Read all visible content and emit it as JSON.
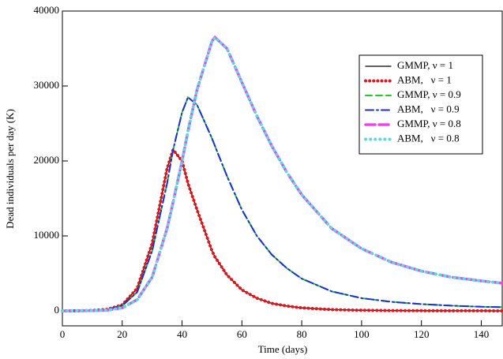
{
  "chart_data": {
    "type": "line",
    "x_label": "Time (days)",
    "y_label": "Dead individuals per day (K)",
    "x": [
      0,
      5,
      10,
      15,
      20,
      25,
      30,
      35,
      37,
      40,
      42,
      45,
      50,
      51,
      55,
      60,
      65,
      70,
      75,
      80,
      90,
      100,
      110,
      120,
      130,
      140,
      147
    ],
    "xlim": [
      0,
      147
    ],
    "xticks": [
      0,
      20,
      40,
      60,
      80,
      100,
      120,
      140
    ],
    "ylim": [
      -2000,
      40000
    ],
    "yticks": [
      0,
      10000,
      20000,
      30000,
      40000
    ],
    "legend": "upper right",
    "series": [
      {
        "name": "GMMP, ν = 1",
        "color": "#000000",
        "dash": "none",
        "width": 1.3,
        "values": [
          0,
          10,
          50,
          200,
          800,
          3000,
          9000,
          19000,
          21500,
          20000,
          17000,
          13500,
          8000,
          7200,
          4800,
          2800,
          1700,
          1000,
          650,
          400,
          170,
          80,
          40,
          20,
          10,
          6,
          5
        ]
      },
      {
        "name": "ABM,   ν = 1",
        "color": "#e8141c",
        "dash": "0.1,5",
        "width": 4,
        "values": [
          0,
          10,
          50,
          200,
          800,
          3000,
          9000,
          19000,
          21500,
          20000,
          17000,
          13500,
          8000,
          7200,
          4800,
          2800,
          1700,
          1000,
          650,
          400,
          170,
          80,
          40,
          20,
          10,
          6,
          5
        ]
      },
      {
        "name": "GMMP, ν = 0.9",
        "color": "#22cc22",
        "dash": "8,5",
        "width": 2,
        "values": [
          0,
          15,
          40,
          200,
          700,
          2500,
          8000,
          17000,
          21500,
          26500,
          28500,
          27500,
          23000,
          22000,
          18000,
          13500,
          10000,
          7500,
          5700,
          4300,
          2600,
          1700,
          1200,
          900,
          700,
          550,
          500
        ]
      },
      {
        "name": "ABM,   ν = 0.9",
        "color": "#1a2fd6",
        "dash": "10,4,2,4",
        "width": 2,
        "values": [
          0,
          15,
          40,
          200,
          700,
          2500,
          8000,
          17000,
          21500,
          26500,
          28500,
          27500,
          23000,
          22000,
          18000,
          13500,
          10000,
          7500,
          5700,
          4300,
          2600,
          1700,
          1200,
          900,
          700,
          550,
          500
        ]
      },
      {
        "name": "GMMP, ν = 0.8",
        "color": "#ee44ee",
        "dash": "12,5",
        "width": 3.5,
        "values": [
          0,
          10,
          30,
          100,
          400,
          1500,
          4500,
          11000,
          14500,
          20000,
          24000,
          29500,
          36000,
          36500,
          35000,
          30500,
          26000,
          22000,
          18500,
          15500,
          11000,
          8300,
          6500,
          5300,
          4500,
          4000,
          3700
        ]
      },
      {
        "name": "ABM,   ν = 0.8",
        "color": "#55dddd",
        "dash": "0.1,6",
        "width": 4,
        "values": [
          0,
          10,
          30,
          100,
          400,
          1500,
          4500,
          11000,
          14500,
          20000,
          24000,
          29500,
          36000,
          36500,
          35000,
          30500,
          26000,
          22000,
          18500,
          15500,
          11000,
          8300,
          6500,
          5300,
          4500,
          4000,
          3700
        ]
      }
    ]
  }
}
